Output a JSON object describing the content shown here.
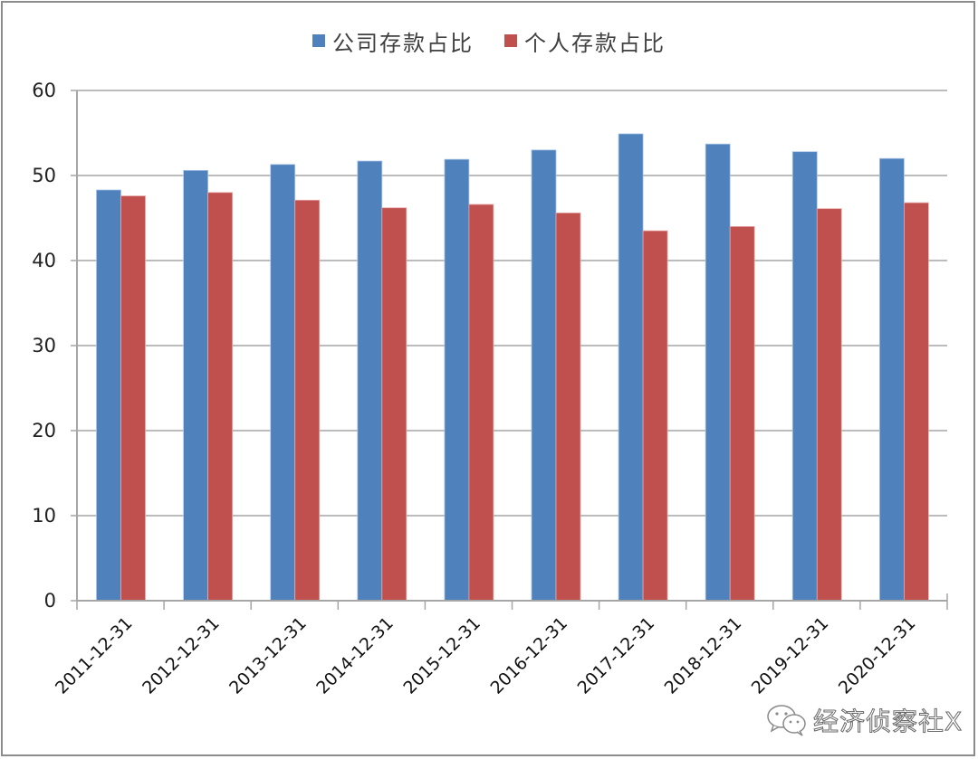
{
  "chart_data": {
    "type": "bar",
    "title": "",
    "xlabel": "",
    "ylabel": "",
    "categories": [
      "2011-12-31",
      "2012-12-31",
      "2013-12-31",
      "2014-12-31",
      "2015-12-31",
      "2016-12-31",
      "2017-12-31",
      "2018-12-31",
      "2019-12-31",
      "2020-12-31"
    ],
    "series": [
      {
        "name": "公司存款占比",
        "color": "#4F81BD",
        "values": [
          48.3,
          50.6,
          51.3,
          51.7,
          51.9,
          53.0,
          54.9,
          53.7,
          52.8,
          52.0
        ]
      },
      {
        "name": "个人存款占比",
        "color": "#C0504D",
        "values": [
          47.6,
          48.0,
          47.1,
          46.2,
          46.6,
          45.6,
          43.5,
          44.0,
          46.1,
          46.8
        ]
      }
    ],
    "ylim": [
      0,
      60
    ],
    "yticks": [
      0,
      10,
      20,
      30,
      40,
      50,
      60
    ],
    "grid": true,
    "legend_position": "top"
  },
  "legend": {
    "items": [
      {
        "label": "公司存款占比",
        "color": "#4F81BD"
      },
      {
        "label": "个人存款占比",
        "color": "#C0504D"
      }
    ]
  },
  "watermark": {
    "text": "经济侦察社X",
    "icon": "wechat-icon"
  }
}
